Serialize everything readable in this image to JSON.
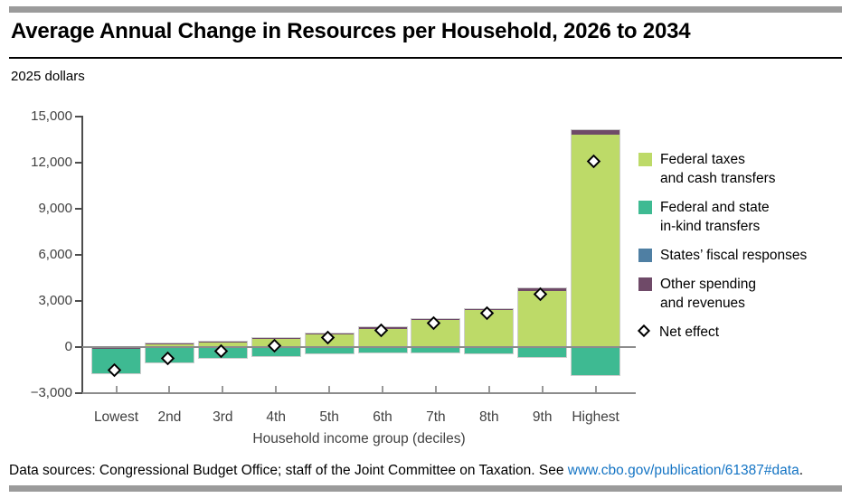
{
  "header": {
    "title": "Average Annual Change in Resources per Household, 2026 to 2034",
    "units_label": "2025 dollars"
  },
  "footer": {
    "prefix": "Data sources: Congressional Budget Office; staff of the Joint Committee on Taxation. See ",
    "link_text": "www.cbo.gov/publication/61387#data",
    "suffix": "."
  },
  "colors": {
    "federal_taxes_cash": "#bdda68",
    "in_kind_transfers": "#3eba92",
    "states_fiscal": "#4f7fa3",
    "other_spending": "#6f4a68",
    "accent_bar": "#9b9b9b",
    "axis": "#8c8c8c",
    "link": "#1474c4"
  },
  "legend": {
    "items": [
      {
        "swatch": "federal_taxes_cash",
        "lines": [
          "Federal taxes",
          "and cash transfers"
        ]
      },
      {
        "swatch": "in_kind_transfers",
        "lines": [
          "Federal and state",
          "in-kind transfers"
        ]
      },
      {
        "swatch": "states_fiscal",
        "lines": [
          "States’ fiscal responses"
        ]
      },
      {
        "swatch": "other_spending",
        "lines": [
          "Other spending",
          "and revenues"
        ]
      },
      {
        "swatch": "diamond",
        "lines": [
          "Net effect"
        ]
      }
    ]
  },
  "chart_data": {
    "type": "bar",
    "stacked": true,
    "title": "Average Annual Change in Resources per Household, 2026 to 2034",
    "subtitle": "2025 dollars",
    "xlabel": "Household income group (deciles)",
    "ylabel": "",
    "categories": [
      "Lowest",
      "2nd",
      "3rd",
      "4th",
      "5th",
      "6th",
      "7th",
      "8th",
      "9th",
      "Highest"
    ],
    "series": [
      {
        "name": "Federal taxes and cash transfers",
        "color": "#bdda68",
        "values": [
          0,
          150,
          300,
          500,
          800,
          1200,
          1750,
          2400,
          3650,
          13800
        ]
      },
      {
        "name": "Federal and state in-kind transfers",
        "color": "#3eba92",
        "values": [
          -1600,
          -1000,
          -700,
          -550,
          -400,
          -350,
          -350,
          -400,
          -650,
          -1800
        ]
      },
      {
        "name": "States’ fiscal responses",
        "color": "#4f7fa3",
        "values": [
          -25,
          -25,
          -25,
          -25,
          -25,
          -25,
          -25,
          -25,
          -25,
          -50
        ]
      },
      {
        "name": "Other spending and revenues",
        "color": "#6f4a68",
        "values": [
          -100,
          100,
          75,
          100,
          100,
          100,
          100,
          100,
          150,
          300
        ]
      }
    ],
    "marker_series": {
      "name": "Net effect",
      "values": [
        -1600,
        -850,
        -400,
        0,
        500,
        1000,
        1450,
        2100,
        3300,
        12000
      ]
    },
    "ylim": [
      -3000,
      15000
    ],
    "yticks": [
      15000,
      12000,
      9000,
      6000,
      3000,
      0,
      -3000
    ],
    "ytick_labels": [
      "15,000",
      "12,000",
      "9,000",
      "6,000",
      "3,000",
      "0",
      "−3,000"
    ],
    "grid": false,
    "legend_position": "right"
  }
}
